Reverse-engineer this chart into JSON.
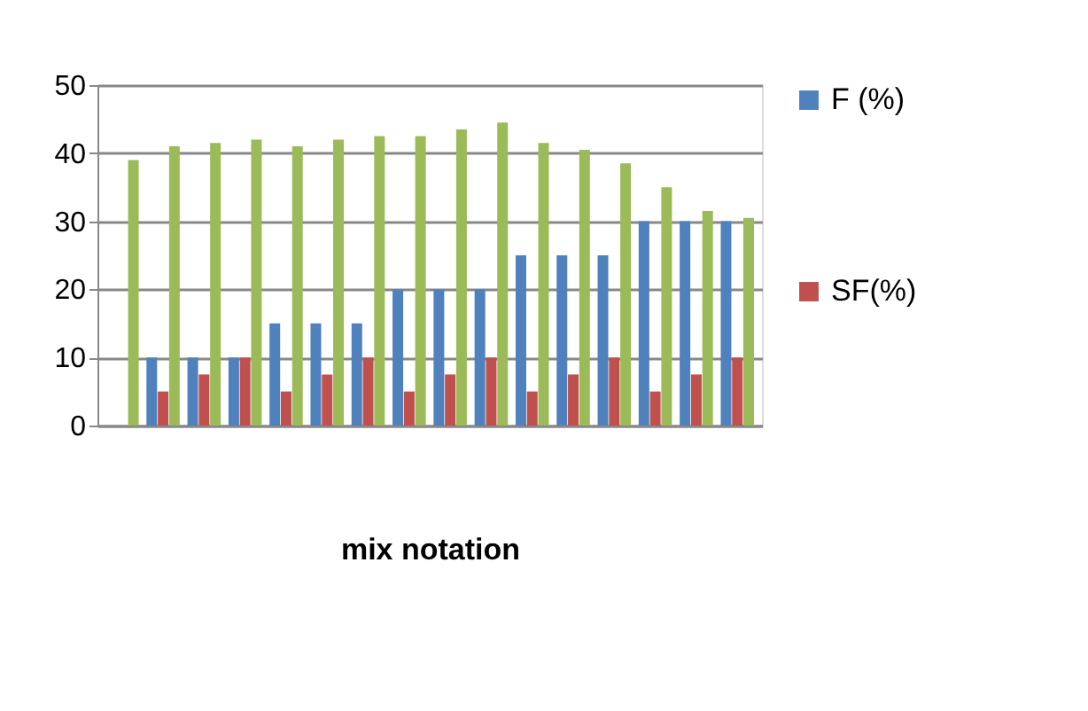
{
  "chart_data": {
    "type": "bar",
    "xlabel": "mix notation",
    "categories": [
      null,
      null,
      null,
      null,
      null,
      null,
      null,
      null,
      null,
      null,
      null,
      null,
      null,
      null,
      null,
      null
    ],
    "series": [
      {
        "name": "F (%)",
        "color": "#4f81bd",
        "values": [
          null,
          10,
          10,
          10,
          15,
          15,
          15,
          20,
          20,
          20,
          25,
          25,
          25,
          30,
          30,
          30
        ]
      },
      {
        "name": "SF(%)",
        "color": "#c0504d",
        "values": [
          null,
          5,
          7.5,
          10,
          5,
          7.5,
          10,
          5,
          7.5,
          10,
          5,
          7.5,
          10,
          5,
          7.5,
          10
        ]
      },
      {
        "color": "#9bbb59",
        "values": [
          39,
          41,
          41.5,
          42,
          41,
          42,
          42.5,
          42.5,
          43.5,
          44.5,
          41.5,
          40.5,
          38.5,
          35,
          31.5,
          30.5
        ]
      }
    ],
    "ylim": [
      0,
      50
    ],
    "yticks": [
      0,
      10,
      20,
      30,
      40,
      50
    ],
    "grid": "y",
    "legend": "right"
  }
}
